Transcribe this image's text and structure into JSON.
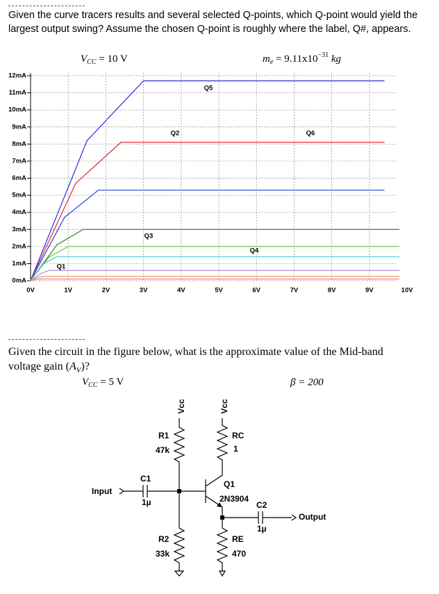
{
  "question1": {
    "text": "Given the curve tracers results and several selected Q-points, which Q-point would yield the largest output swing? Assume the chosen Q-point is roughly where the label, Q#, appears."
  },
  "chart_data": {
    "type": "line",
    "vcc": {
      "base": "V",
      "sub": "CC",
      "rest": " = 10 V"
    },
    "mass": {
      "base": "m",
      "sub": "e",
      "rest": " = 9.11x10",
      "sup": "−31",
      "unit": " kg"
    },
    "xlim": [
      0,
      10
    ],
    "ylim": [
      0,
      12
    ],
    "grid": true,
    "xticks": [
      {
        "value": 0,
        "label": "0V"
      },
      {
        "value": 1,
        "label": "1V"
      },
      {
        "value": 2,
        "label": "2V"
      },
      {
        "value": 3,
        "label": "3V"
      },
      {
        "value": 4,
        "label": "4V"
      },
      {
        "value": 5,
        "label": "5V"
      },
      {
        "value": 6,
        "label": "6V"
      },
      {
        "value": 7,
        "label": "7V"
      },
      {
        "value": 8,
        "label": "8V"
      },
      {
        "value": 9,
        "label": "9V"
      },
      {
        "value": 10,
        "label": "10V"
      }
    ],
    "yticks": [
      {
        "value": 0,
        "label": "0mA"
      },
      {
        "value": 1,
        "label": "1mA"
      },
      {
        "value": 2,
        "label": "2mA"
      },
      {
        "value": 3,
        "label": "3mA"
      },
      {
        "value": 4,
        "label": "4mA"
      },
      {
        "value": 5,
        "label": "5mA"
      },
      {
        "value": 6,
        "label": "6mA"
      },
      {
        "value": 7,
        "label": "7mA"
      },
      {
        "value": 8,
        "label": "8mA"
      },
      {
        "value": 9,
        "label": "9mA"
      },
      {
        "value": 10,
        "label": "10mA"
      },
      {
        "value": 11,
        "label": "11mA"
      },
      {
        "value": 12,
        "label": "12mA"
      }
    ],
    "series": [
      {
        "color": "#2a2ae0",
        "x": [
          0,
          1.5,
          3.0,
          9.4
        ],
        "values": [
          0,
          8.2,
          11.7,
          11.7
        ]
      },
      {
        "color": "#e02a2a",
        "x": [
          0,
          1.2,
          2.4,
          9.4
        ],
        "values": [
          0,
          5.7,
          8.1,
          8.1
        ]
      },
      {
        "color": "#2a40d0",
        "x": [
          0,
          0.9,
          1.8,
          9.4
        ],
        "values": [
          0,
          3.7,
          5.3,
          5.3
        ]
      },
      {
        "color": "#2a8a2a",
        "x": [
          0,
          0.7,
          1.4,
          9.8
        ],
        "values": [
          0,
          2.1,
          3.0,
          3.0
        ]
      },
      {
        "color": "#6cbf3a",
        "x": [
          0,
          0.5,
          1.0,
          9.8
        ],
        "values": [
          0,
          1.4,
          2.0,
          2.0
        ]
      },
      {
        "color": "#4ccfe0",
        "x": [
          0,
          0.35,
          0.7,
          9.8
        ],
        "values": [
          0,
          1.0,
          1.4,
          1.4
        ]
      },
      {
        "color": "#b08ad8",
        "x": [
          0,
          0.3,
          0.5,
          9.8
        ],
        "values": [
          0,
          0.45,
          0.6,
          0.6
        ]
      },
      {
        "color": "#f0a040",
        "x": [
          0,
          0.2,
          0.4,
          9.8
        ],
        "values": [
          0,
          0.2,
          0.25,
          0.25
        ]
      },
      {
        "color": "#f070b0",
        "x": [
          0,
          0.2,
          9.8
        ],
        "values": [
          0,
          0.1,
          0.1
        ]
      }
    ],
    "annotations": [
      "Q5",
      "Q2",
      "Q6",
      "Q3",
      "Q4",
      "Q1"
    ]
  },
  "question2": {
    "text": "Given the circuit in the figure below, what is the approximate value of the Mid-band voltage gain (",
    "symbol": "A",
    "sub": "V",
    "end": ")?"
  },
  "circuit": {
    "vcc": {
      "base": "V",
      "sub": "CC",
      "rest": " = 5 V"
    },
    "beta": "β = 200",
    "vcc1": "Vcc",
    "vcc2": "Vcc",
    "r1": "R1",
    "r1_value": "47k",
    "rc": "RC",
    "rc_value": "1",
    "c1": "C1",
    "c1_value": "1µ",
    "input": "Input",
    "q1": "Q1",
    "q1_part": "2N3904",
    "c2": "C2",
    "c2_value": "1µ",
    "output": "Output",
    "r2": "R2",
    "r2_value": "33k",
    "re": "RE",
    "re_value": "470"
  }
}
